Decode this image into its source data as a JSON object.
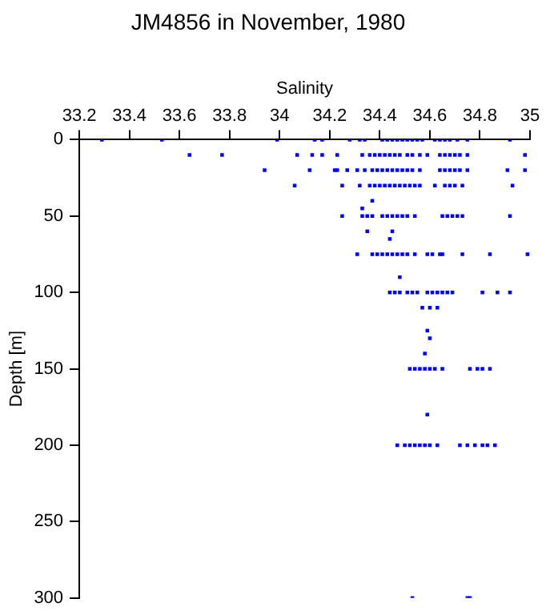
{
  "chart_data": {
    "type": "scatter",
    "title": "JM4856 in November, 1980",
    "xlabel": "Salinity",
    "ylabel": "Depth [m]",
    "xlim": [
      33.2,
      35
    ],
    "xticks": [
      33.2,
      33.4,
      33.6,
      33.8,
      34,
      34.2,
      34.4,
      34.6,
      34.8,
      35
    ],
    "ylim": [
      300,
      0
    ],
    "yticks": [
      0,
      50,
      100,
      150,
      200,
      250,
      300
    ],
    "grid": false,
    "legend": false,
    "marker": "square",
    "series": [
      {
        "color": "#0000ff",
        "x": [
          33.29,
          33.53,
          33.99,
          34.14,
          34.17,
          34.28,
          34.32,
          34.34,
          34.41,
          34.43,
          34.45,
          34.47,
          34.49,
          34.51,
          34.53,
          34.55,
          34.57,
          34.62,
          34.64,
          34.66,
          34.68,
          34.71,
          34.75,
          34.92,
          33.64,
          33.77,
          34.07,
          34.13,
          34.17,
          34.23,
          34.33,
          34.36,
          34.38,
          34.4,
          34.42,
          34.44,
          34.46,
          34.48,
          34.51,
          34.53,
          34.56,
          34.59,
          34.64,
          34.66,
          34.68,
          34.7,
          34.72,
          34.75,
          34.98,
          33.94,
          34.12,
          34.22,
          34.23,
          34.27,
          34.31,
          34.34,
          34.37,
          34.39,
          34.41,
          34.43,
          34.45,
          34.47,
          34.49,
          34.51,
          34.53,
          34.56,
          34.64,
          34.66,
          34.68,
          34.7,
          34.72,
          34.75,
          34.91,
          34.98,
          34.06,
          34.25,
          34.32,
          34.36,
          34.38,
          34.4,
          34.42,
          34.44,
          34.46,
          34.48,
          34.5,
          34.52,
          34.54,
          34.56,
          34.62,
          34.66,
          34.68,
          34.7,
          34.73,
          34.93,
          34.37,
          34.33,
          34.25,
          34.33,
          34.35,
          34.37,
          34.41,
          34.43,
          34.45,
          34.47,
          34.49,
          34.51,
          34.54,
          34.65,
          34.67,
          34.69,
          34.71,
          34.73,
          34.92,
          34.35,
          34.45,
          34.44,
          34.31,
          34.37,
          34.39,
          34.41,
          34.43,
          34.45,
          34.47,
          34.49,
          34.51,
          34.54,
          34.59,
          34.61,
          34.64,
          34.65,
          34.73,
          34.84,
          34.99,
          34.48,
          34.44,
          34.46,
          34.48,
          34.51,
          34.53,
          34.55,
          34.59,
          34.61,
          34.63,
          34.65,
          34.67,
          34.69,
          34.81,
          34.87,
          34.92,
          34.57,
          34.6,
          34.63,
          34.59,
          34.6,
          34.58,
          34.52,
          34.54,
          34.56,
          34.58,
          34.6,
          34.62,
          34.65,
          34.76,
          34.79,
          34.81,
          34.84,
          34.59,
          34.47,
          34.5,
          34.52,
          34.54,
          34.56,
          34.58,
          34.6,
          34.63,
          34.72,
          34.75,
          34.78,
          34.81,
          34.83,
          34.86,
          34.53,
          34.75,
          34.76
        ],
        "values": [
          0,
          0,
          0,
          0,
          0,
          0,
          0,
          0,
          0,
          0,
          0,
          0,
          0,
          0,
          0,
          0,
          0,
          0,
          0,
          0,
          0,
          0,
          0,
          0,
          10,
          10,
          10,
          10,
          10,
          10,
          10,
          10,
          10,
          10,
          10,
          10,
          10,
          10,
          10,
          10,
          10,
          10,
          10,
          10,
          10,
          10,
          10,
          10,
          10,
          20,
          20,
          20,
          20,
          20,
          20,
          20,
          20,
          20,
          20,
          20,
          20,
          20,
          20,
          20,
          20,
          20,
          20,
          20,
          20,
          20,
          20,
          20,
          20,
          20,
          30,
          30,
          30,
          30,
          30,
          30,
          30,
          30,
          30,
          30,
          30,
          30,
          30,
          30,
          30,
          30,
          30,
          30,
          30,
          30,
          40,
          45,
          50,
          50,
          50,
          50,
          50,
          50,
          50,
          50,
          50,
          50,
          50,
          50,
          50,
          50,
          50,
          50,
          50,
          60,
          60,
          65,
          75,
          75,
          75,
          75,
          75,
          75,
          75,
          75,
          75,
          75,
          75,
          75,
          75,
          75,
          75,
          75,
          75,
          90,
          100,
          100,
          100,
          100,
          100,
          100,
          100,
          100,
          100,
          100,
          100,
          100,
          100,
          100,
          100,
          110,
          110,
          110,
          125,
          130,
          140,
          150,
          150,
          150,
          150,
          150,
          150,
          150,
          150,
          150,
          150,
          150,
          180,
          200,
          200,
          200,
          200,
          200,
          200,
          200,
          200,
          200,
          200,
          200,
          200,
          200,
          200,
          300,
          300,
          300
        ]
      }
    ]
  }
}
